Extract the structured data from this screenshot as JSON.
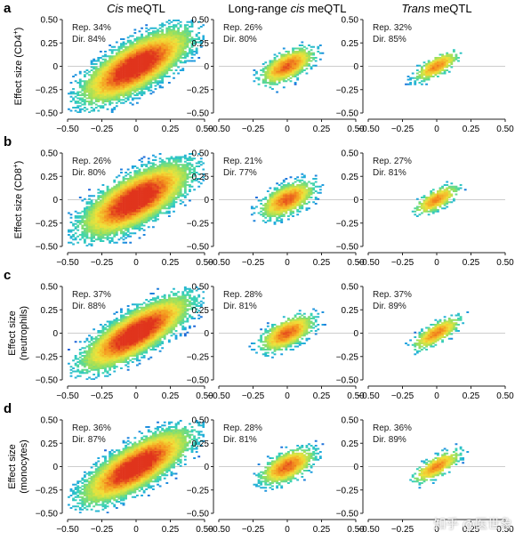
{
  "col_titles": [
    {
      "pre": "",
      "ital": "Cis",
      "post": " meQTL"
    },
    {
      "pre": "Long-range ",
      "ital": "cis",
      "post": " meQTL"
    },
    {
      "pre": "",
      "ital": "Trans",
      "post": " meQTL"
    }
  ],
  "rows": [
    {
      "letter": "a",
      "ylabel": [
        "Effect size (CD4",
        "+",
        ")"
      ]
    },
    {
      "letter": "b",
      "ylabel": [
        "Effect size (CD8",
        "+",
        ")"
      ]
    },
    {
      "letter": "c",
      "ylabel": [
        "Effect size",
        "(neutrophils)"
      ]
    },
    {
      "letter": "d",
      "ylabel": [
        "Effect size",
        "(monocytes)"
      ]
    }
  ],
  "watermark": "知乎 @医世象",
  "colors": {
    "gradient": [
      "#0b1f8f",
      "#1e5bd8",
      "#1fa8e0",
      "#39d3b5",
      "#9be05a",
      "#f0e23a",
      "#f59a1f",
      "#e0341c"
    ],
    "refline": "#bdbdbd"
  },
  "chart_data": [
    {
      "type": "heatmap",
      "row": "a",
      "column": "Cis meQTL",
      "annotation": [
        "Rep. 34%",
        "Dir. 84%"
      ],
      "xlim": [
        -0.5,
        0.5
      ],
      "ylim": [
        -0.5,
        0.5
      ],
      "xticks": [
        "−0.50",
        "−0.25",
        "0",
        "0.25",
        "0.50"
      ],
      "yticks": [
        "0.50",
        "0.25",
        "0",
        "−0.25",
        "−0.50"
      ],
      "spread": 0.21,
      "corr": 0.72,
      "density": "dense"
    },
    {
      "type": "heatmap",
      "row": "a",
      "column": "Long-range cis meQTL",
      "annotation": [
        "Rep. 26%",
        "Dir. 80%"
      ],
      "xlim": [
        -0.5,
        0.5
      ],
      "ylim": [
        -0.5,
        0.5
      ],
      "xticks": [
        "−0.50",
        "−0.25",
        "0",
        "0.25",
        "0.50"
      ],
      "yticks": [
        "0.50",
        "0.25",
        "0",
        "−0.25",
        "−0.50"
      ],
      "spread": 0.11,
      "corr": 0.6,
      "density": "medium"
    },
    {
      "type": "heatmap",
      "row": "a",
      "column": "Trans meQTL",
      "annotation": [
        "Rep. 32%",
        "Dir. 85%"
      ],
      "xlim": [
        -0.5,
        0.5
      ],
      "ylim": [
        -0.5,
        0.5
      ],
      "xticks": [
        "−0.50",
        "−0.25",
        "0",
        "0.25",
        "0.50"
      ],
      "yticks": [
        "0.50",
        "0.25",
        "0",
        "−0.25",
        "−0.50"
      ],
      "spread": 0.09,
      "corr": 0.7,
      "density": "sparse"
    },
    {
      "type": "heatmap",
      "row": "b",
      "column": "Cis meQTL",
      "annotation": [
        "Rep. 26%",
        "Dir. 80%"
      ],
      "xlim": [
        -0.5,
        0.5
      ],
      "ylim": [
        -0.5,
        0.5
      ],
      "xticks": [
        "−0.50",
        "−0.25",
        "0",
        "0.25",
        "0.50"
      ],
      "yticks": [
        "0.50",
        "0.25",
        "0",
        "−0.25",
        "−0.50"
      ],
      "spread": 0.21,
      "corr": 0.7,
      "density": "dense"
    },
    {
      "type": "heatmap",
      "row": "b",
      "column": "Long-range cis meQTL",
      "annotation": [
        "Rep. 21%",
        "Dir. 77%"
      ],
      "xlim": [
        -0.5,
        0.5
      ],
      "ylim": [
        -0.5,
        0.5
      ],
      "xticks": [
        "−0.50",
        "−0.25",
        "0",
        "0.25",
        "0.50"
      ],
      "yticks": [
        "0.50",
        "0.25",
        "0",
        "−0.25",
        "−0.50"
      ],
      "spread": 0.11,
      "corr": 0.55,
      "density": "medium"
    },
    {
      "type": "heatmap",
      "row": "b",
      "column": "Trans meQTL",
      "annotation": [
        "Rep. 27%",
        "Dir. 81%"
      ],
      "xlim": [
        -0.5,
        0.5
      ],
      "ylim": [
        -0.5,
        0.5
      ],
      "xticks": [
        "−0.50",
        "−0.25",
        "0",
        "0.25",
        "0.50"
      ],
      "yticks": [
        "0.50",
        "0.25",
        "0",
        "−0.25",
        "−0.50"
      ],
      "spread": 0.09,
      "corr": 0.68,
      "density": "sparse"
    },
    {
      "type": "heatmap",
      "row": "c",
      "column": "Cis meQTL",
      "annotation": [
        "Rep. 37%",
        "Dir. 88%"
      ],
      "xlim": [
        -0.5,
        0.5
      ],
      "ylim": [
        -0.5,
        0.5
      ],
      "xticks": [
        "−0.50",
        "−0.25",
        "0",
        "0.25",
        "0.50"
      ],
      "yticks": [
        "0.50",
        "0.25",
        "0",
        "−0.25",
        "−0.50"
      ],
      "spread": 0.21,
      "corr": 0.78,
      "density": "dense"
    },
    {
      "type": "heatmap",
      "row": "c",
      "column": "Long-range cis meQTL",
      "annotation": [
        "Rep. 28%",
        "Dir. 81%"
      ],
      "xlim": [
        -0.5,
        0.5
      ],
      "ylim": [
        -0.5,
        0.5
      ],
      "xticks": [
        "−0.50",
        "−0.25",
        "0",
        "0.25",
        "0.50"
      ],
      "yticks": [
        "0.50",
        "0.25",
        "0",
        "−0.25",
        "−0.50"
      ],
      "spread": 0.11,
      "corr": 0.6,
      "density": "medium"
    },
    {
      "type": "heatmap",
      "row": "c",
      "column": "Trans meQTL",
      "annotation": [
        "Rep. 37%",
        "Dir. 89%"
      ],
      "xlim": [
        -0.5,
        0.5
      ],
      "ylim": [
        -0.5,
        0.5
      ],
      "xticks": [
        "−0.50",
        "−0.25",
        "0",
        "0.25",
        "0.50"
      ],
      "yticks": [
        "0.50",
        "0.25",
        "0",
        "−0.25",
        "−0.50"
      ],
      "spread": 0.1,
      "corr": 0.75,
      "density": "sparse"
    },
    {
      "type": "heatmap",
      "row": "d",
      "column": "Cis meQTL",
      "annotation": [
        "Rep. 36%",
        "Dir. 87%"
      ],
      "xlim": [
        -0.5,
        0.5
      ],
      "ylim": [
        -0.5,
        0.5
      ],
      "xticks": [
        "−0.50",
        "−0.25",
        "0",
        "0.25",
        "0.50"
      ],
      "yticks": [
        "0.50",
        "0.25",
        "0",
        "−0.25",
        "−0.50"
      ],
      "spread": 0.21,
      "corr": 0.76,
      "density": "dense"
    },
    {
      "type": "heatmap",
      "row": "d",
      "column": "Long-range cis meQTL",
      "annotation": [
        "Rep. 28%",
        "Dir. 81%"
      ],
      "xlim": [
        -0.5,
        0.5
      ],
      "ylim": [
        -0.5,
        0.5
      ],
      "xticks": [
        "−0.50",
        "−0.25",
        "0",
        "0.25",
        "0.50"
      ],
      "yticks": [
        "0.50",
        "0.25",
        "0",
        "−0.25",
        "−0.50"
      ],
      "spread": 0.11,
      "corr": 0.58,
      "density": "medium"
    },
    {
      "type": "heatmap",
      "row": "d",
      "column": "Trans meQTL",
      "annotation": [
        "Rep. 36%",
        "Dir. 89%"
      ],
      "xlim": [
        -0.5,
        0.5
      ],
      "ylim": [
        -0.5,
        0.5
      ],
      "xticks": [
        "−0.50",
        "−0.25",
        "0",
        "0.25",
        "0.50"
      ],
      "yticks": [
        "0.50",
        "0.25",
        "0",
        "−0.25",
        "−0.50"
      ],
      "spread": 0.1,
      "corr": 0.74,
      "density": "sparse"
    }
  ]
}
